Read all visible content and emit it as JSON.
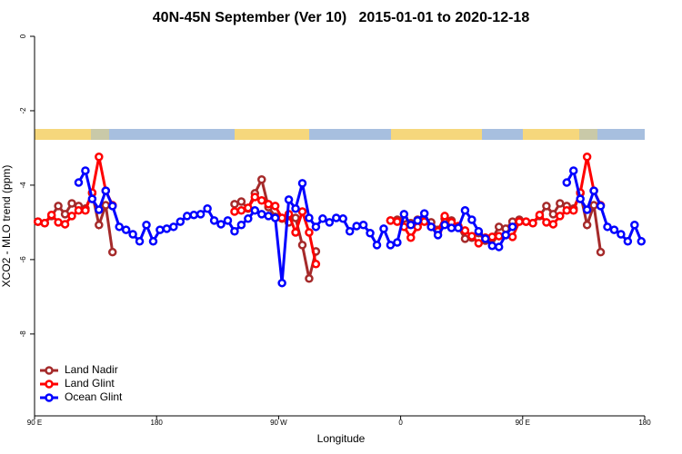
{
  "chart_data": {
    "type": "line",
    "title": "40N-45N September (Ver 10)   2015-01-01 to 2020-12-18",
    "x_label": "Longitude",
    "y_label": "XCO2 - MLO trend (ppm)",
    "xlim": [
      90,
      540
    ],
    "ylim": [
      -10.2,
      0
    ],
    "xticks": [
      {
        "value": 90,
        "label": "90 E"
      },
      180,
      {
        "value": 270,
        "label": "90 W"
      },
      {
        "value": 360,
        "label": "0"
      },
      {
        "value": 450,
        "label": "90 E"
      },
      {
        "value": 540,
        "label": "180"
      }
    ],
    "yticks": [
      0,
      -2,
      -4,
      -6,
      -8
    ],
    "legend": "bottom-left",
    "x": [
      92.5,
      97.5,
      102.5,
      107.5,
      112.5,
      117.5,
      122.5,
      127.5,
      132.5,
      137.5,
      142.5,
      147.5,
      152.5,
      157.5,
      162.5,
      167.5,
      172.5,
      177.5,
      182.5,
      187.5,
      192.5,
      197.5,
      202.5,
      207.5,
      212.5,
      217.5,
      222.5,
      227.5,
      232.5,
      237.5,
      242.5,
      247.5,
      252.5,
      257.5,
      262.5,
      267.5,
      272.5,
      277.5,
      282.5,
      287.5,
      292.5,
      297.5,
      302.5,
      307.5,
      312.5,
      317.5,
      322.5,
      327.5,
      332.5,
      337.5,
      342.5,
      347.5,
      352.5,
      357.5,
      362.5,
      367.5,
      372.5,
      377.5,
      382.5,
      387.5,
      392.5,
      397.5,
      402.5,
      407.5,
      412.5,
      417.5,
      422.5,
      427.5,
      432.5,
      437.5,
      442.5,
      447.5,
      452.5,
      457.5,
      462.5,
      467.5,
      472.5,
      477.5,
      482.5,
      487.5,
      492.5,
      497.5,
      502.5,
      507.5,
      512.5,
      517.5,
      522.5,
      527.5,
      532.5,
      537.5
    ],
    "series": [
      {
        "name": "Land Nadir",
        "color": "#a52a2a",
        "values": [
          -4.98,
          -5.02,
          -4.83,
          -4.56,
          -4.78,
          -4.49,
          -4.56,
          -4.63,
          -4.22,
          -5.07,
          -4.54,
          -5.8,
          null,
          null,
          null,
          null,
          null,
          null,
          null,
          null,
          null,
          null,
          null,
          null,
          null,
          null,
          null,
          null,
          null,
          -4.51,
          -4.44,
          -4.63,
          -4.22,
          -3.85,
          -4.59,
          -4.85,
          -4.9,
          -5.0,
          -4.88,
          -5.61,
          -6.51,
          -5.78,
          null,
          null,
          null,
          null,
          null,
          null,
          null,
          null,
          null,
          null,
          -4.95,
          -4.93,
          -4.9,
          -5.02,
          -4.93,
          -4.93,
          -5.0,
          -5.2,
          -4.9,
          -4.95,
          -5.12,
          -5.44,
          -5.41,
          -5.29,
          -5.49,
          -5.44,
          -5.12,
          -5.17,
          -4.98,
          -4.93,
          -4.98,
          -5.02,
          -4.83,
          -4.56,
          -4.78,
          -4.49,
          -4.56,
          -4.63,
          -4.22,
          -5.07,
          -4.54,
          -5.8,
          null,
          null,
          null,
          null,
          null,
          null
        ]
      },
      {
        "name": "Land Glint",
        "color": "#ff0000",
        "values": [
          -4.98,
          -5.02,
          -4.8,
          -5.0,
          -5.05,
          -4.83,
          -4.68,
          -4.68,
          -4.2,
          -3.24,
          -4.15,
          -4.54,
          null,
          null,
          null,
          null,
          null,
          null,
          null,
          null,
          null,
          null,
          null,
          null,
          null,
          null,
          null,
          null,
          null,
          -4.71,
          -4.68,
          -4.61,
          -4.32,
          -4.41,
          -4.51,
          -4.56,
          -4.88,
          -4.78,
          -5.27,
          -4.71,
          -5.27,
          -6.12,
          null,
          null,
          null,
          null,
          null,
          null,
          null,
          null,
          null,
          null,
          -4.95,
          -4.98,
          -5.12,
          -5.41,
          -5.12,
          -4.98,
          -5.12,
          -5.24,
          -4.83,
          -5.0,
          -5.1,
          -5.22,
          -5.37,
          -5.56,
          -5.41,
          -5.39,
          -5.37,
          -5.34,
          -5.39,
          -4.98,
          -4.98,
          -5.02,
          -4.8,
          -5.0,
          -5.05,
          -4.83,
          -4.68,
          -4.68,
          -4.2,
          -3.24,
          -4.15,
          -4.54,
          null,
          null,
          null,
          null,
          null,
          null
        ]
      },
      {
        "name": "Ocean Glint",
        "color": "#0000ff",
        "values": [
          null,
          null,
          null,
          null,
          null,
          null,
          -3.93,
          -3.61,
          -4.37,
          -4.66,
          -4.15,
          -4.56,
          -5.12,
          -5.2,
          -5.32,
          -5.51,
          -5.07,
          -5.51,
          -5.2,
          -5.17,
          -5.12,
          -4.98,
          -4.83,
          -4.8,
          -4.78,
          -4.63,
          -4.95,
          -5.05,
          -4.95,
          -5.24,
          -5.07,
          -4.9,
          -4.68,
          -4.78,
          -4.83,
          -4.88,
          -6.63,
          -4.39,
          -4.63,
          -3.95,
          -4.88,
          -5.12,
          -4.9,
          -5.0,
          -4.88,
          -4.9,
          -5.24,
          -5.1,
          -5.07,
          -5.29,
          -5.61,
          -5.17,
          -5.61,
          -5.54,
          -4.78,
          -5.07,
          -4.95,
          -4.76,
          -5.12,
          -5.34,
          -5.07,
          -5.15,
          -5.15,
          -4.68,
          -4.93,
          -5.24,
          -5.44,
          -5.63,
          -5.66,
          -5.34,
          -5.12,
          null,
          null,
          null,
          null,
          null,
          null,
          null,
          -3.93,
          -3.61,
          -4.37,
          -4.66,
          -4.15,
          -4.56,
          -5.12,
          -5.2,
          -5.32,
          -5.51,
          -5.07,
          -5.51
        ]
      }
    ]
  }
}
